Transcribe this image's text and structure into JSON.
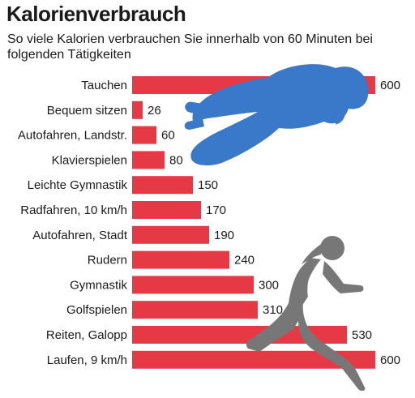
{
  "title": "Kalorienverbrauch",
  "subtitle": "So viele Kalorien verbrauchen Sie innerhalb von 60 Minuten bei folgenden Tätigkeiten",
  "colors": {
    "bar": "#e63946",
    "diver": "#3a78c9",
    "runner": "#777777"
  },
  "icons": [
    "diver-silhouette",
    "runner-silhouette"
  ],
  "chart_data": {
    "type": "bar",
    "orientation": "horizontal",
    "title": "Kalorienverbrauch",
    "subtitle": "So viele Kalorien verbrauchen Sie innerhalb von 60 Minuten bei folgenden Tätigkeiten",
    "categories": [
      "Tauchen",
      "Bequem sitzen",
      "Autofahren, Landstr.",
      "Klavierspielen",
      "Leichte Gymnastik",
      "Radfahren, 10 km/h",
      "Autofahren, Stadt",
      "Rudern",
      "Gymnastik",
      "Golfspielen",
      "Reiten, Galopp",
      "Laufen, 9 km/h"
    ],
    "values": [
      600,
      26,
      60,
      80,
      150,
      170,
      190,
      240,
      300,
      310,
      530,
      600
    ],
    "xlim": [
      0,
      600
    ],
    "grid": false,
    "data_labels": true
  }
}
